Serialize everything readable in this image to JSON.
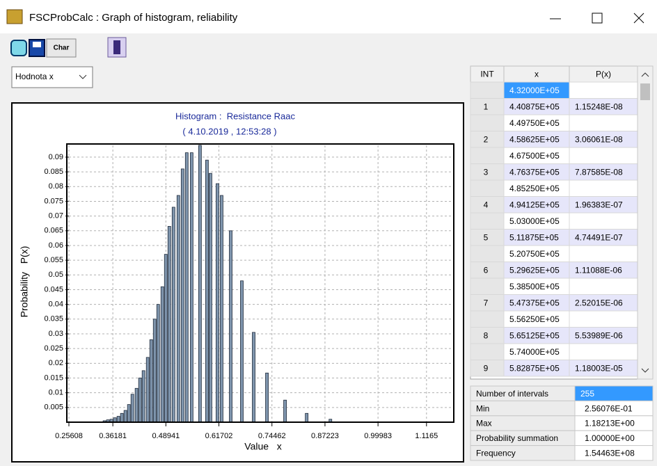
{
  "window": {
    "title": "FSCProbCalc : Graph of histogram, reliability"
  },
  "toolbar": {
    "char_button": "Char"
  },
  "dropdown": {
    "value": "Hodnota x"
  },
  "chart_data": {
    "type": "bar",
    "title": "Histogram :  Resistance Raac",
    "subtitle": "( 4.10.2019 , 12:53:28 )",
    "x_label": "Value   x",
    "y_label": "Probability   P(x)",
    "x": [
      0.3417,
      0.35,
      0.3584,
      0.3668,
      0.3752,
      0.3836,
      0.392,
      0.4004,
      0.4088,
      0.4188,
      0.4272,
      0.4356,
      0.4457,
      0.4541,
      0.4625,
      0.4709,
      0.4809,
      0.4893,
      0.4977,
      0.5078,
      0.5195,
      0.5296,
      0.5396,
      0.5514,
      0.5715,
      0.5883,
      0.5967,
      0.6135,
      0.6235,
      0.6454,
      0.6722,
      0.7007,
      0.7326,
      0.7762,
      0.8282,
      0.8853
    ],
    "values": [
      0.0005,
      0.0008,
      0.001,
      0.0015,
      0.002,
      0.003,
      0.004,
      0.006,
      0.0095,
      0.0115,
      0.015,
      0.0175,
      0.022,
      0.028,
      0.035,
      0.04,
      0.046,
      0.057,
      0.0665,
      0.073,
      0.077,
      0.086,
      0.0915,
      0.0915,
      0.094,
      0.089,
      0.0845,
      0.081,
      0.077,
      0.065,
      0.048,
      0.0305,
      0.0167,
      0.0075,
      0.003,
      0.001
    ],
    "color": "#7f95ad",
    "xlim": [
      0.25608,
      1.18213
    ],
    "ylim": [
      0,
      0.094
    ],
    "xticks": [
      0.25608,
      0.36181,
      0.48941,
      0.61702,
      0.74462,
      0.87223,
      0.99983,
      1.1165
    ],
    "yticks": [
      0.005,
      0.01,
      0.015,
      0.02,
      0.025,
      0.03,
      0.035,
      0.04,
      0.045,
      0.05,
      0.055,
      0.06,
      0.065,
      0.07,
      0.075,
      0.08,
      0.085,
      0.09
    ],
    "grid": true
  },
  "table": {
    "headers": [
      "INT",
      "x",
      "P(x)"
    ],
    "rows": [
      {
        "x": "4.32000E+05"
      },
      {
        "int": "1",
        "x": "4.40875E+05",
        "p": "1.15248E-08"
      },
      {
        "x": "4.49750E+05"
      },
      {
        "int": "2",
        "x": "4.58625E+05",
        "p": "3.06061E-08"
      },
      {
        "x": "4.67500E+05"
      },
      {
        "int": "3",
        "x": "4.76375E+05",
        "p": "7.87585E-08"
      },
      {
        "x": "4.85250E+05"
      },
      {
        "int": "4",
        "x": "4.94125E+05",
        "p": "1.96383E-07"
      },
      {
        "x": "5.03000E+05"
      },
      {
        "int": "5",
        "x": "5.11875E+05",
        "p": "4.74491E-07"
      },
      {
        "x": "5.20750E+05"
      },
      {
        "int": "6",
        "x": "5.29625E+05",
        "p": "1.11088E-06"
      },
      {
        "x": "5.38500E+05"
      },
      {
        "int": "7",
        "x": "5.47375E+05",
        "p": "2.52015E-06"
      },
      {
        "x": "5.56250E+05"
      },
      {
        "int": "8",
        "x": "5.65125E+05",
        "p": "5.53989E-06"
      },
      {
        "x": "5.74000E+05"
      },
      {
        "int": "9",
        "x": "5.82875E+05",
        "p": "1.18003E-05"
      }
    ]
  },
  "summary": [
    {
      "label": "Number of intervals",
      "value": "255"
    },
    {
      "label": "Min",
      "value": "2.56076E-01"
    },
    {
      "label": "Max",
      "value": "1.18213E+00"
    },
    {
      "label": "Probability summation",
      "value": "1.00000E+00"
    },
    {
      "label": "Frequency",
      "value": "1.54463E+08"
    }
  ]
}
